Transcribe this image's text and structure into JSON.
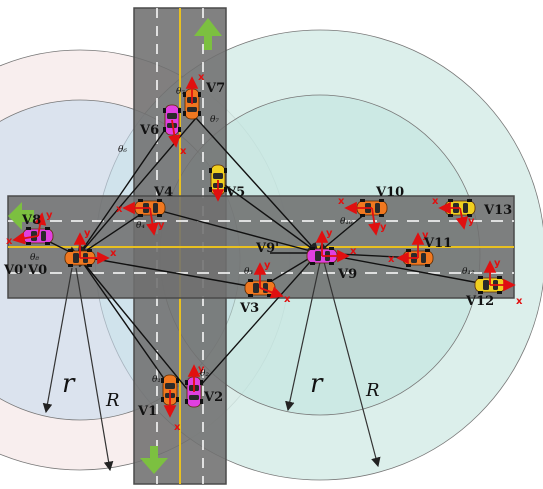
{
  "radius_labels": {
    "r_left": "r",
    "R_left": "R",
    "r_right": "r",
    "R_right": "R"
  },
  "axis_letters": {
    "x": "x",
    "y": "y"
  },
  "vehicles": [
    {
      "id": "V0",
      "label": "V0",
      "heading": "θ",
      "color": "#f07820"
    },
    {
      "id": "V0p",
      "label": "V0'",
      "color": "#f07820"
    },
    {
      "id": "V1",
      "label": "V1",
      "heading": "θ₁",
      "color": "#f07820"
    },
    {
      "id": "V2",
      "label": "V2",
      "heading": "θ₂",
      "color": "#e040e0"
    },
    {
      "id": "V3",
      "label": "V3",
      "heading": "θ₃",
      "color": "#f07820"
    },
    {
      "id": "V4",
      "label": "V4",
      "heading": "θ₄",
      "color": "#f07820"
    },
    {
      "id": "V5",
      "label": "V5",
      "color": "#f0d020"
    },
    {
      "id": "V6",
      "label": "V6",
      "heading": "θ₆",
      "color": "#e040e0"
    },
    {
      "id": "V7",
      "label": "V7",
      "heading": "θ₇",
      "color": "#f07820"
    },
    {
      "id": "V8",
      "label": "V8",
      "heading": "θ₈",
      "color": "#e040e0"
    },
    {
      "id": "V9",
      "label": "V9",
      "color": "#e040e0"
    },
    {
      "id": "V9p",
      "label": "V9'",
      "color": "#f07820"
    },
    {
      "id": "V10",
      "label": "V10",
      "heading": "θ₁₀",
      "color": "#f07820"
    },
    {
      "id": "V11",
      "label": "V11",
      "color": "#f07820"
    },
    {
      "id": "V12",
      "label": "V12",
      "heading": "θ₁₂",
      "color": "#f0d020"
    },
    {
      "id": "V13",
      "label": "V13",
      "color": "#f0d020"
    }
  ],
  "colors": {
    "road": "#6f6f6f",
    "road_edge": "#4a4a4a",
    "center_line": "#e8c020",
    "lane_dash": "#ffffff",
    "left_outer_circle": "#f6e8e8",
    "left_inner_circle": "#c8dcef",
    "right_outer_circle": "#d6ece8",
    "right_inner_circle": "#bfe3df",
    "arrow_green": "#7cc040",
    "axis_red": "#e01010",
    "link_line": "#111111"
  }
}
